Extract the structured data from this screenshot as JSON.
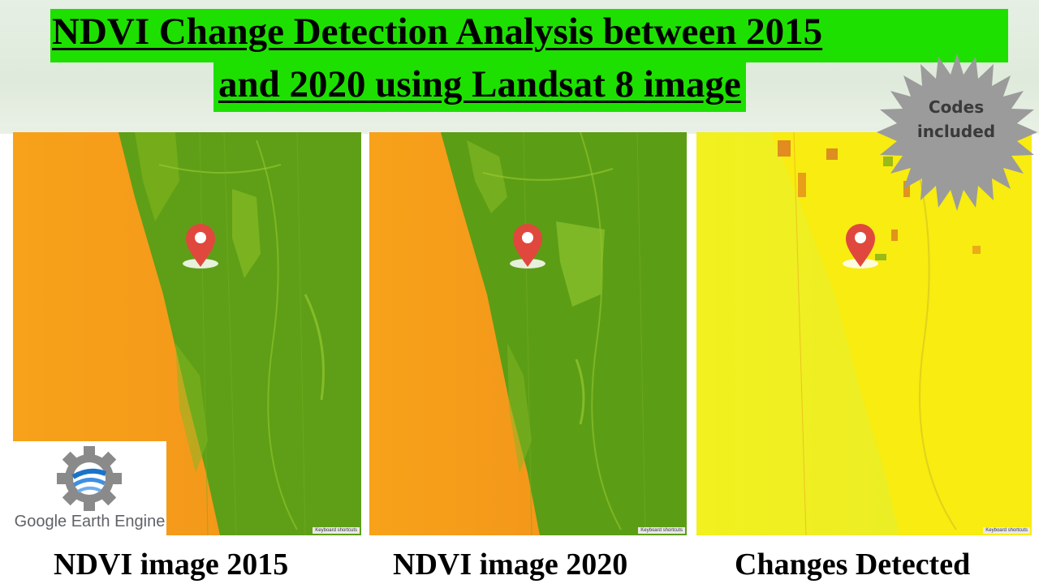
{
  "title": {
    "line1": "NDVI Change Detection Analysis between 2015",
    "line2": "and 2020 using Landsat 8 image"
  },
  "badge": {
    "line1": "Codes",
    "line2": "included"
  },
  "logo": {
    "text": "Google Earth Engine",
    "icon": "google-earth-engine-logo"
  },
  "panels": [
    {
      "caption": "NDVI image 2015",
      "keyboard_label": "Keyboard shortcuts"
    },
    {
      "caption": "NDVI image 2020",
      "keyboard_label": "Keyboard shortcuts"
    },
    {
      "caption": "Changes Detected",
      "keyboard_label": "Keyboard shortcuts"
    }
  ],
  "colors": {
    "title_background": "#1ee000",
    "water_orange": "#f59a18",
    "land_green": "#5fa618",
    "change_yellow": "#f6f01e",
    "marker_red": "#e0483e",
    "badge_gray": "#9b9b9b"
  }
}
